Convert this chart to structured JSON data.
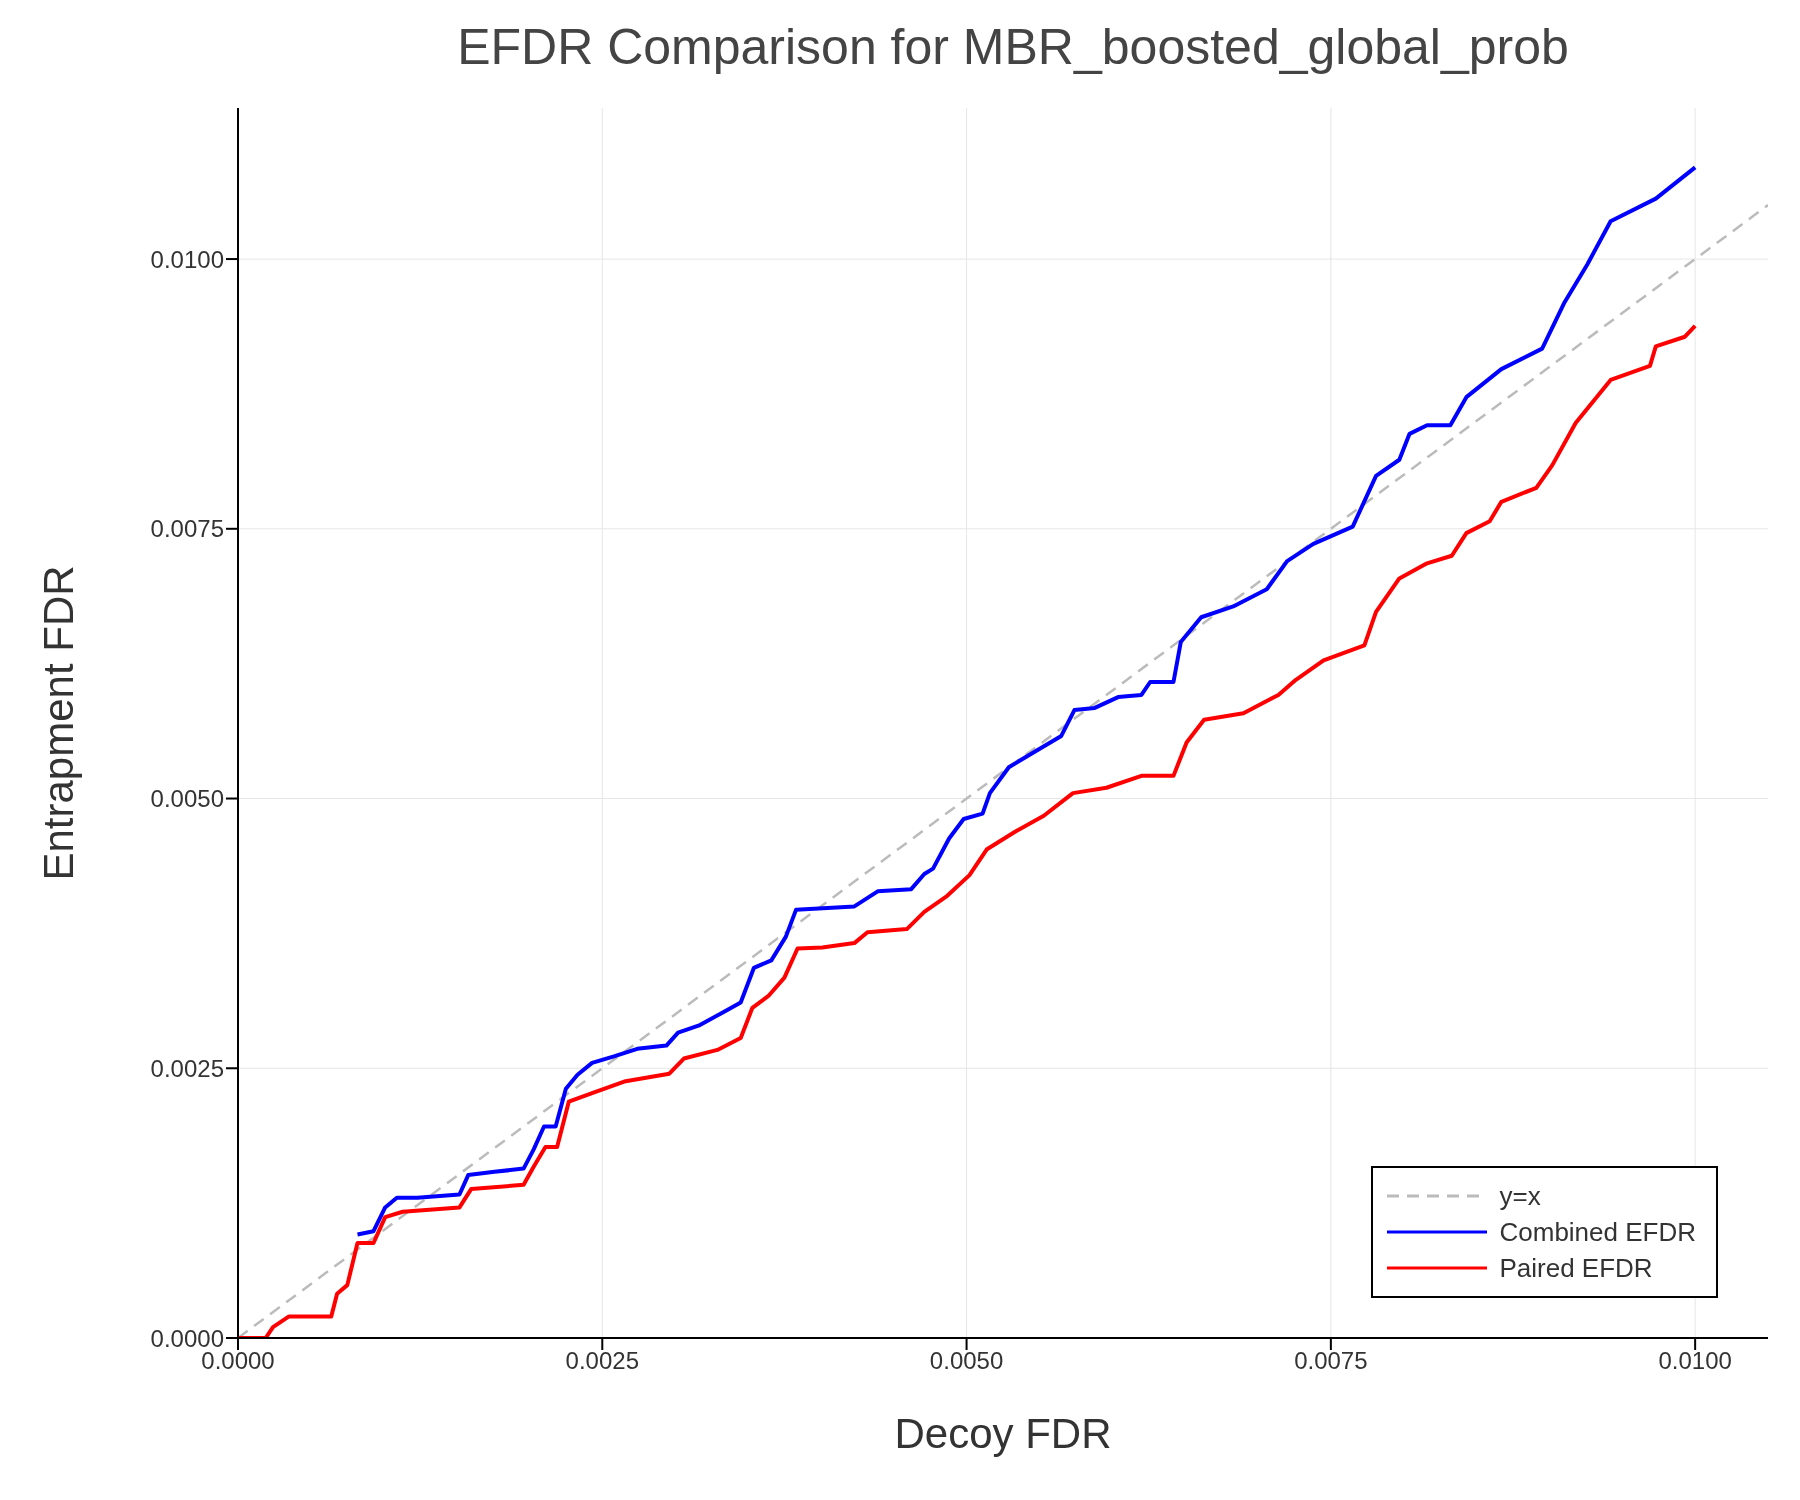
{
  "chart_data": {
    "type": "line",
    "title": "EFDR Comparison for MBR_boosted_global_prob",
    "xlabel": "Decoy FDR",
    "ylabel": "Entrapment FDR",
    "xlim": [
      0,
      0.0105
    ],
    "ylim": [
      0,
      0.0114
    ],
    "xticks": [
      {
        "value": 0,
        "label": "0.0000"
      },
      {
        "value": 0.0025,
        "label": "0.0025"
      },
      {
        "value": 0.005,
        "label": "0.0050"
      },
      {
        "value": 0.0075,
        "label": "0.0075"
      },
      {
        "value": 0.01,
        "label": "0.0100"
      }
    ],
    "yticks": [
      {
        "value": 0,
        "label": "0.0000"
      },
      {
        "value": 0.0025,
        "label": "0.0025"
      },
      {
        "value": 0.005,
        "label": "0.0050"
      },
      {
        "value": 0.0075,
        "label": "0.0075"
      },
      {
        "value": 0.01,
        "label": "0.0100"
      }
    ],
    "grid": true,
    "legend": "bottom right",
    "marker": "none",
    "series": [
      {
        "name": "y=x",
        "color": "#bbbbbb",
        "line_style": "dashed",
        "x": [
          0,
          0.0105
        ],
        "values": [
          0,
          0.0105
        ]
      },
      {
        "name": "Combined EFDR",
        "color": "#0000ff",
        "line_style": "solid",
        "x": [
          0.00082,
          0.00093,
          0.00101,
          0.00109,
          0.00123,
          0.00152,
          0.00158,
          0.00176,
          0.00196,
          0.00203,
          0.0021,
          0.00218,
          0.00225,
          0.00233,
          0.00243,
          0.00258,
          0.00274,
          0.00294,
          0.00302,
          0.00317,
          0.00333,
          0.00345,
          0.00354,
          0.00366,
          0.00376,
          0.00383,
          0.00423,
          0.00439,
          0.00462,
          0.00471,
          0.00477,
          0.00488,
          0.00498,
          0.00511,
          0.00516,
          0.00529,
          0.00545,
          0.00565,
          0.00574,
          0.00588,
          0.00604,
          0.0062,
          0.00626,
          0.00642,
          0.00647,
          0.00661,
          0.00683,
          0.00706,
          0.0072,
          0.00738,
          0.00765,
          0.00781,
          0.00797,
          0.00804,
          0.00816,
          0.00832,
          0.00843,
          0.00867,
          0.00895,
          0.0091,
          0.00926,
          0.00942,
          0.00973,
          0.01
        ],
        "values": [
          0.00096,
          0.00099,
          0.00121,
          0.0013,
          0.0013,
          0.00133,
          0.00151,
          0.00154,
          0.00157,
          0.00175,
          0.00196,
          0.00196,
          0.00231,
          0.00244,
          0.00255,
          0.00261,
          0.00268,
          0.00271,
          0.00283,
          0.0029,
          0.00302,
          0.00311,
          0.00343,
          0.0035,
          0.00372,
          0.00397,
          0.004,
          0.00414,
          0.00416,
          0.0043,
          0.00435,
          0.00463,
          0.00481,
          0.00486,
          0.00505,
          0.00529,
          0.00542,
          0.00558,
          0.00582,
          0.00584,
          0.00594,
          0.00596,
          0.00608,
          0.00608,
          0.00645,
          0.00668,
          0.00678,
          0.00694,
          0.0072,
          0.00736,
          0.00752,
          0.00799,
          0.00814,
          0.00838,
          0.00846,
          0.00846,
          0.00872,
          0.00898,
          0.00917,
          0.00959,
          0.00995,
          0.01035,
          0.01056,
          0.01085
        ]
      },
      {
        "name": "Paired EFDR",
        "color": "#ff0000",
        "line_style": "solid",
        "x": [
          0,
          0.00019,
          0.00024,
          0.00035,
          0.00064,
          0.00068,
          0.00075,
          0.00082,
          0.00093,
          0.00101,
          0.00113,
          0.00152,
          0.0016,
          0.00196,
          0.00203,
          0.00211,
          0.00219,
          0.00227,
          0.00243,
          0.00266,
          0.00296,
          0.00306,
          0.00329,
          0.00345,
          0.00353,
          0.00364,
          0.00375,
          0.00384,
          0.00401,
          0.00423,
          0.00432,
          0.00459,
          0.00471,
          0.00486,
          0.00502,
          0.00514,
          0.00533,
          0.00553,
          0.00573,
          0.00596,
          0.0062,
          0.00642,
          0.00651,
          0.00663,
          0.0069,
          0.00714,
          0.00726,
          0.00745,
          0.00773,
          0.00781,
          0.00797,
          0.00816,
          0.00833,
          0.00843,
          0.00859,
          0.00867,
          0.00891,
          0.00902,
          0.00918,
          0.00942,
          0.00969,
          0.00973,
          0.00993,
          0.01
        ],
        "values": [
          0,
          0,
          0.0001,
          0.0002,
          0.0002,
          0.00041,
          0.00049,
          0.00088,
          0.00088,
          0.00112,
          0.00117,
          0.00121,
          0.00138,
          0.00142,
          0.00159,
          0.00177,
          0.00177,
          0.00219,
          0.00227,
          0.00238,
          0.00245,
          0.00259,
          0.00267,
          0.00278,
          0.00306,
          0.00317,
          0.00334,
          0.00361,
          0.00362,
          0.00366,
          0.00376,
          0.00379,
          0.00395,
          0.00409,
          0.00429,
          0.00453,
          0.00469,
          0.00484,
          0.00505,
          0.0051,
          0.00521,
          0.00521,
          0.00552,
          0.00573,
          0.00579,
          0.00596,
          0.0061,
          0.00628,
          0.00642,
          0.00673,
          0.00704,
          0.00718,
          0.00725,
          0.00746,
          0.00757,
          0.00775,
          0.00788,
          0.00809,
          0.00848,
          0.00888,
          0.00901,
          0.00919,
          0.00928,
          0.00938
        ]
      }
    ]
  }
}
